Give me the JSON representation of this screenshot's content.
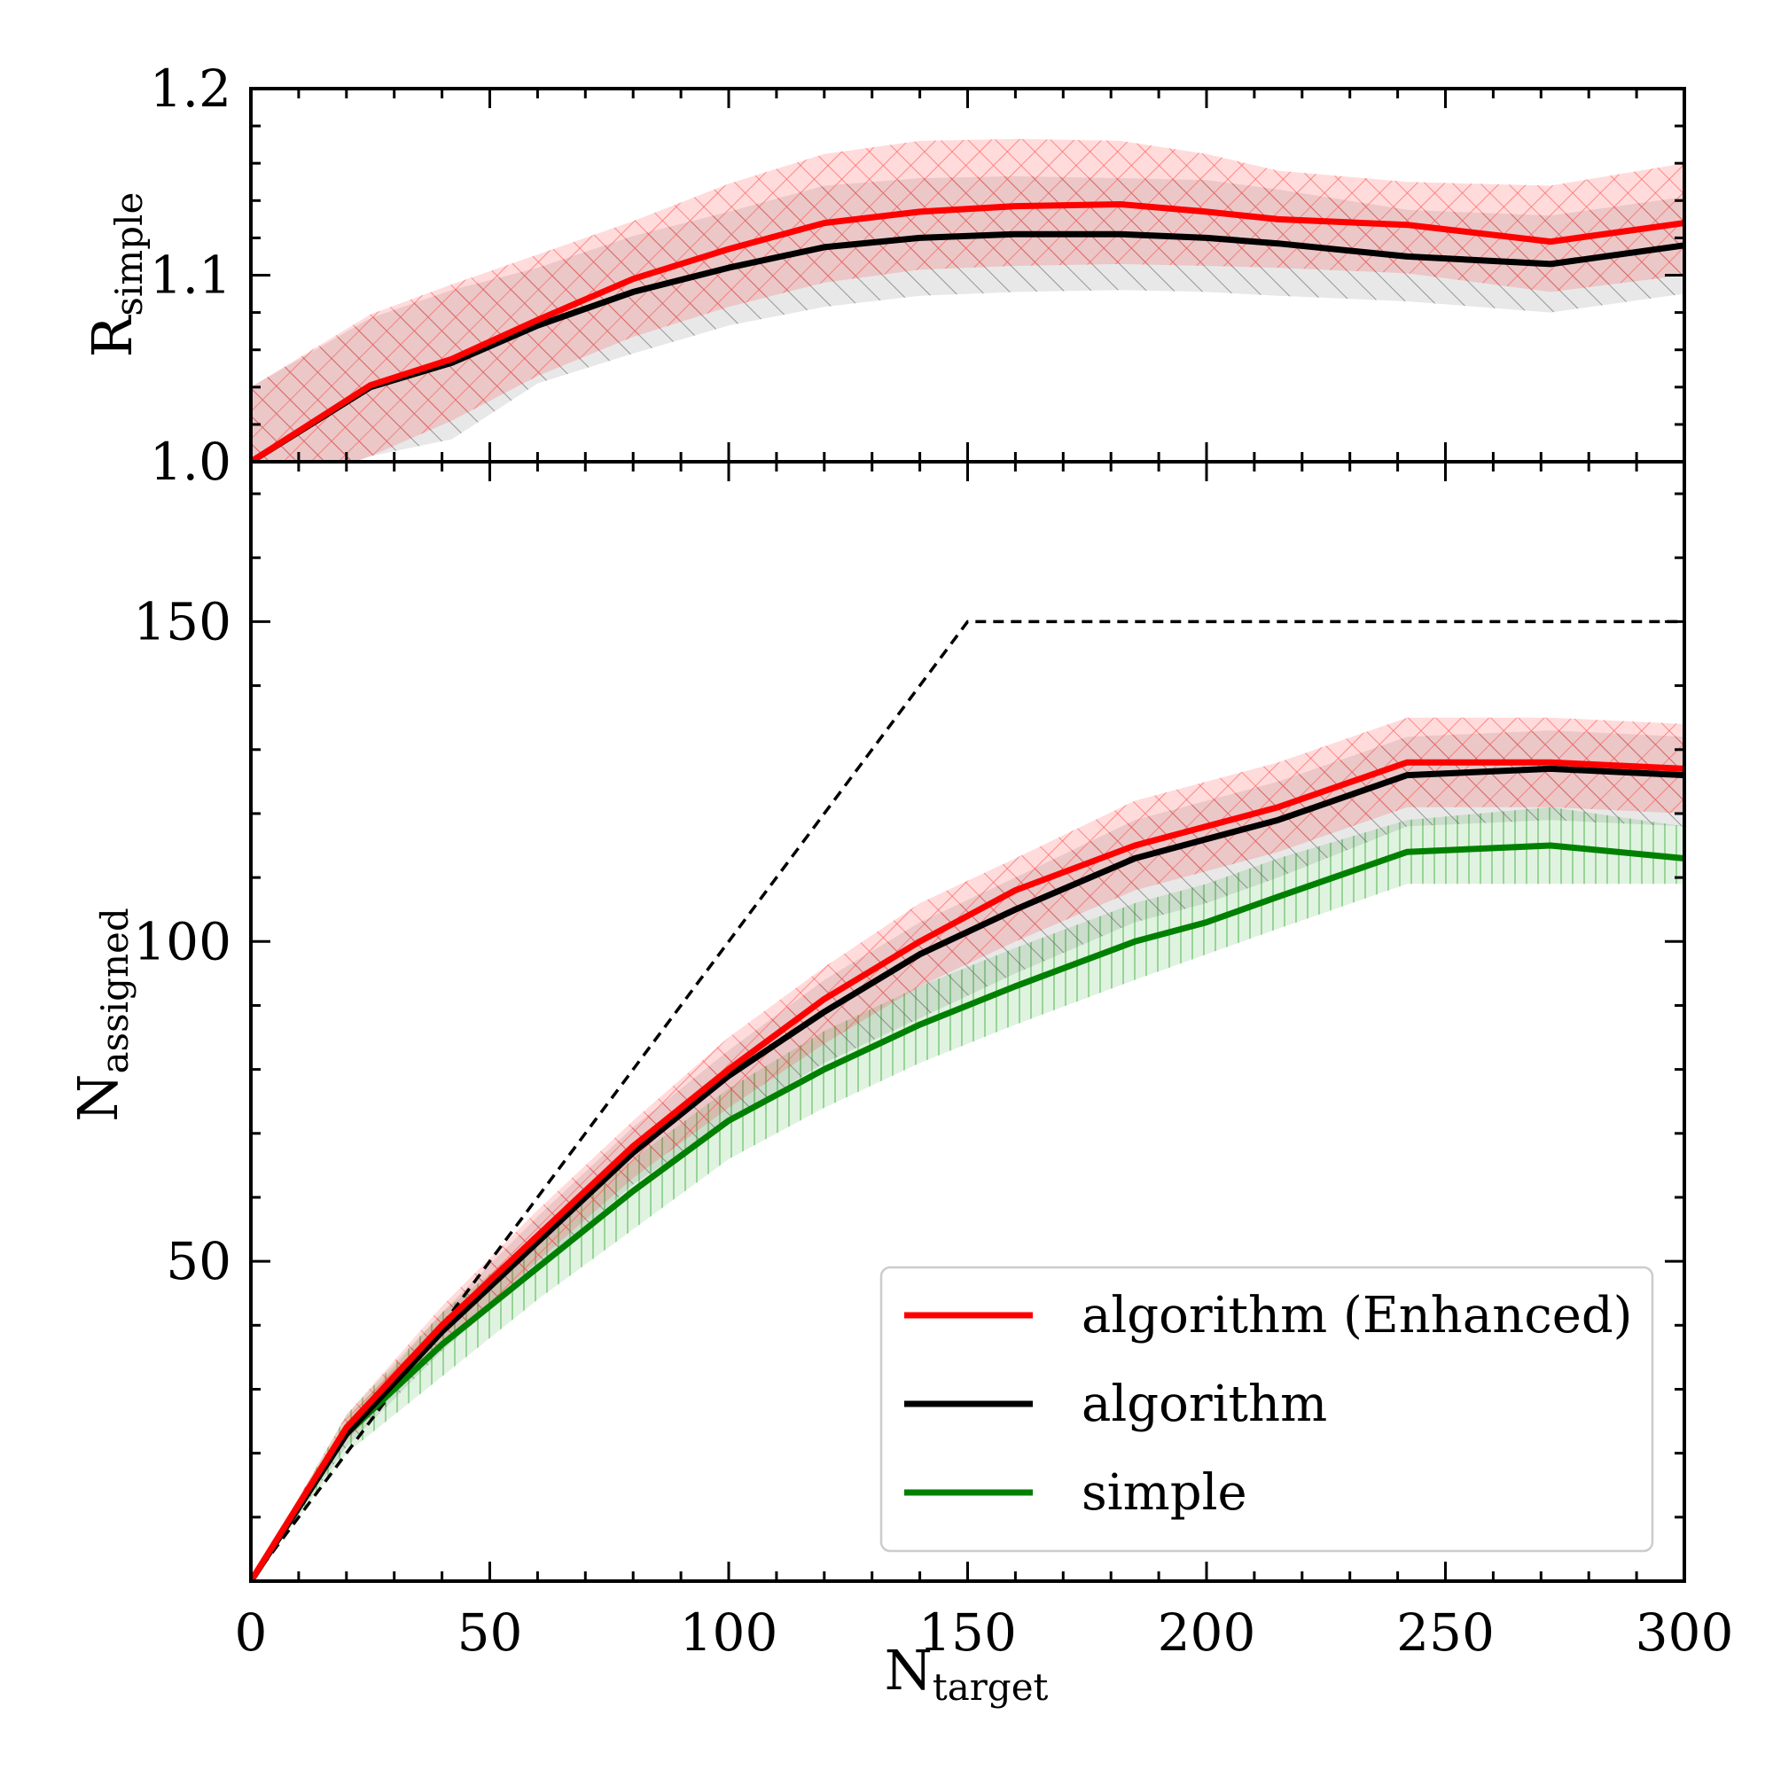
{
  "chart_data": [
    {
      "panel": "top",
      "type": "line",
      "ylabel": {
        "main": "R",
        "sub": "simple"
      },
      "xlim": [
        0,
        300
      ],
      "ylim": [
        1.0,
        1.2
      ],
      "yticks": [
        1.0,
        1.1,
        1.2
      ],
      "ytick_labels": [
        "1.0",
        "1.1",
        "1.2"
      ],
      "series": [
        {
          "name": "algorithm (Enhanced)",
          "color": "#ff0000",
          "x": [
            0,
            25,
            42,
            60,
            80,
            100,
            120,
            140,
            160,
            182,
            200,
            215,
            242,
            272,
            300
          ],
          "y": [
            1.0,
            1.041,
            1.055,
            1.076,
            1.098,
            1.114,
            1.128,
            1.134,
            1.137,
            1.138,
            1.134,
            1.13,
            1.127,
            1.118,
            1.128
          ],
          "lower": [
            0.98,
            1.003,
            1.022,
            1.046,
            1.067,
            1.083,
            1.096,
            1.103,
            1.105,
            1.106,
            1.105,
            1.104,
            1.101,
            1.091,
            1.1
          ],
          "upper": [
            1.04,
            1.079,
            1.095,
            1.111,
            1.129,
            1.149,
            1.165,
            1.172,
            1.173,
            1.172,
            1.165,
            1.156,
            1.15,
            1.148,
            1.16
          ]
        },
        {
          "name": "algorithm",
          "color": "#000000",
          "x": [
            0,
            25,
            42,
            60,
            80,
            100,
            120,
            140,
            160,
            182,
            200,
            215,
            242,
            272,
            300
          ],
          "y": [
            1.0,
            1.04,
            1.053,
            1.073,
            1.091,
            1.104,
            1.115,
            1.12,
            1.122,
            1.122,
            1.12,
            1.117,
            1.11,
            1.106,
            1.116
          ],
          "lower": [
            0.98,
            1.003,
            1.012,
            1.042,
            1.058,
            1.073,
            1.083,
            1.089,
            1.091,
            1.092,
            1.091,
            1.089,
            1.086,
            1.08,
            1.09
          ],
          "upper": [
            1.04,
            1.077,
            1.092,
            1.104,
            1.121,
            1.134,
            1.148,
            1.152,
            1.153,
            1.152,
            1.151,
            1.146,
            1.135,
            1.132,
            1.142
          ]
        }
      ]
    },
    {
      "panel": "bottom",
      "type": "line",
      "xlabel": {
        "main": "N",
        "sub": "target"
      },
      "ylabel": {
        "main": "N",
        "sub": "assigned"
      },
      "xlim": [
        0,
        300
      ],
      "ylim": [
        0,
        175
      ],
      "xticks": [
        0,
        50,
        100,
        150,
        200,
        250,
        300
      ],
      "xtick_labels": [
        "0",
        "50",
        "100",
        "150",
        "200",
        "250",
        "300"
      ],
      "yticks": [
        50,
        100,
        150
      ],
      "ytick_labels": [
        "50",
        "100",
        "150"
      ],
      "reference": {
        "x": [
          0,
          150,
          300
        ],
        "y": [
          0,
          150,
          150
        ],
        "style": "dashed",
        "color": "#000000"
      },
      "series": [
        {
          "name": "algorithm (Enhanced)",
          "color": "#ff0000",
          "x": [
            0,
            20,
            40,
            60,
            80,
            100,
            120,
            140,
            160,
            185,
            200,
            215,
            242,
            272,
            300
          ],
          "y": [
            0,
            24,
            40,
            54,
            68,
            80,
            91,
            100,
            108,
            115,
            118,
            121,
            128,
            128,
            127
          ],
          "lower": [
            0,
            22,
            37,
            50,
            63,
            74,
            84,
            93,
            100,
            108,
            111,
            114,
            121,
            121,
            120
          ],
          "upper": [
            0,
            26,
            43,
            58,
            72,
            85,
            96,
            106,
            113,
            122,
            125,
            128,
            135,
            135,
            134
          ]
        },
        {
          "name": "algorithm",
          "color": "#000000",
          "x": [
            0,
            20,
            40,
            60,
            80,
            100,
            120,
            140,
            160,
            185,
            200,
            215,
            242,
            272,
            300
          ],
          "y": [
            0,
            23,
            39,
            53,
            67,
            79,
            89,
            98,
            105,
            113,
            116,
            119,
            126,
            127,
            126
          ],
          "lower": [
            0,
            21,
            36,
            49,
            62,
            72,
            81,
            88,
            95,
            103,
            106,
            110,
            118,
            119,
            118
          ],
          "upper": [
            0,
            25,
            42,
            57,
            71,
            83,
            94,
            103,
            110,
            119,
            122,
            125,
            132,
            133,
            132
          ]
        },
        {
          "name": "simple",
          "color": "#008000",
          "x": [
            0,
            20,
            40,
            60,
            80,
            100,
            120,
            140,
            160,
            185,
            200,
            215,
            242,
            272,
            300
          ],
          "y": [
            0,
            23,
            37,
            49,
            61,
            72,
            80,
            87,
            93,
            100,
            103,
            107,
            114,
            115,
            113
          ],
          "lower": [
            0,
            20,
            32,
            44,
            55,
            66,
            74,
            81,
            87,
            94,
            98,
            102,
            109,
            109,
            109
          ],
          "upper": [
            0,
            26,
            42,
            54,
            66,
            77,
            86,
            93,
            99,
            106,
            109,
            113,
            119,
            121,
            118
          ]
        }
      ]
    }
  ],
  "legend": {
    "placement": "lower right",
    "entries": [
      {
        "label": "algorithm (Enhanced)",
        "color": "#ff0000"
      },
      {
        "label": "algorithm",
        "color": "#000000"
      },
      {
        "label": "simple",
        "color": "#008000"
      }
    ]
  },
  "colors": {
    "enhanced": "#ff0000",
    "algorithm": "#000000",
    "simple": "#008000"
  }
}
